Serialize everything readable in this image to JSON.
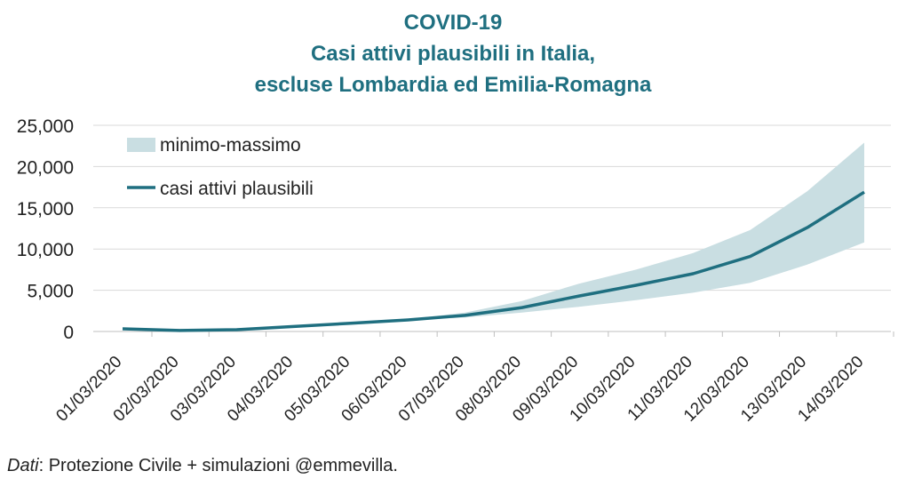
{
  "chart_data": {
    "type": "area",
    "title_lines": [
      "COVID-19",
      "Casi attivi plausibili in Italia,",
      "escluse Lombardia ed Emilia-Romagna"
    ],
    "xlabel": "",
    "ylabel": "",
    "categories": [
      "01/03/2020",
      "02/03/2020",
      "03/03/2020",
      "04/03/2020",
      "05/03/2020",
      "06/03/2020",
      "07/03/2020",
      "08/03/2020",
      "09/03/2020",
      "10/03/2020",
      "11/03/2020",
      "12/03/2020",
      "13/03/2020",
      "14/03/2020"
    ],
    "y_ticks": [
      "0",
      "5,000",
      "10,000",
      "15,000",
      "20,000",
      "25,000"
    ],
    "ylim": [
      0,
      25000
    ],
    "grid": true,
    "legend_position": "top-left",
    "series": [
      {
        "name": "casi attivi plausibili",
        "kind": "line",
        "color": "#1f6f80",
        "values": [
          320,
          120,
          220,
          600,
          1000,
          1400,
          1950,
          2900,
          4300,
          5600,
          7000,
          9100,
          12600,
          16900
        ]
      },
      {
        "name": "minimo-massimo",
        "kind": "band",
        "color": "#c9dee2",
        "low": [
          320,
          120,
          220,
          600,
          1000,
          1350,
          1700,
          2300,
          3000,
          3800,
          4700,
          5900,
          8100,
          10800
        ],
        "high": [
          320,
          120,
          220,
          600,
          1000,
          1500,
          2300,
          3700,
          5800,
          7500,
          9500,
          12300,
          17000,
          22900
        ]
      }
    ]
  },
  "footer": {
    "source_label": "Dati",
    "source_text": ": Protezione Civile + simulazioni @emmevilla."
  }
}
